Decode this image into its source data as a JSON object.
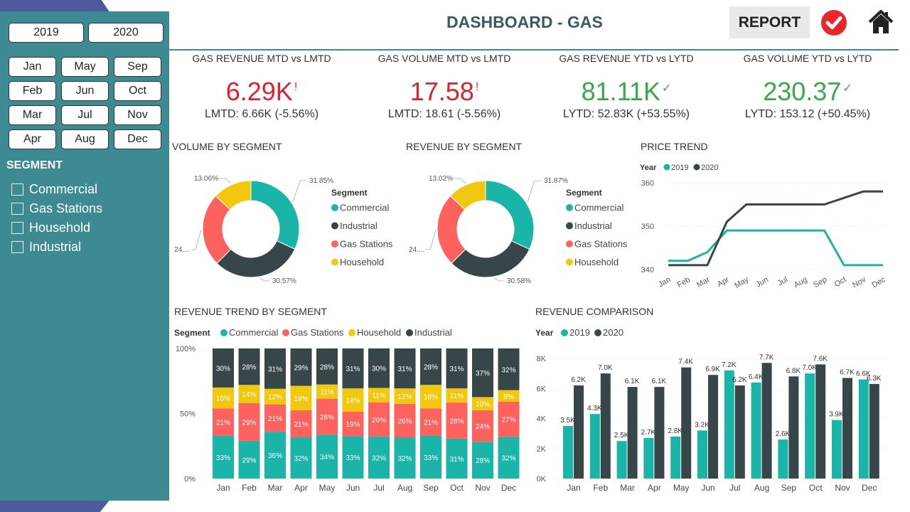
{
  "header": {
    "title": "DASHBOARD - GAS",
    "report_label": "REPORT"
  },
  "filters": {
    "years": [
      "2019",
      "2020"
    ],
    "months": [
      "Jan",
      "May",
      "Sep",
      "Feb",
      "Jun",
      "Oct",
      "Mar",
      "Jul",
      "Nov",
      "Apr",
      "Aug",
      "Dec"
    ],
    "segment_title": "SEGMENT",
    "segments": [
      "Commercial",
      "Gas Stations",
      "Household",
      "Industrial"
    ]
  },
  "kpis": [
    {
      "title": "GAS REVENUE MTD vs LMTD",
      "value": "6.29K",
      "mark": "!",
      "sub": "LMTD: 6.66K (-5.56%)",
      "status": "red"
    },
    {
      "title": "GAS VOLUME MTD vs LMTD",
      "value": "17.58",
      "mark": "!",
      "sub": "LMTD: 18.61 (-5.56%)",
      "status": "red"
    },
    {
      "title": "GAS REVENUE YTD vs LYTD",
      "value": "81.11K",
      "mark": "✓",
      "sub": "LYTD: 52.83K (+53.55%)",
      "status": "green"
    },
    {
      "title": "GAS VOLUME YTD vs LYTD",
      "value": "230.37",
      "mark": "✓",
      "sub": "LYTD: 153.12 (+50.45%)",
      "status": "green"
    }
  ],
  "colors": {
    "commercial": "#1ab5a8",
    "industrial": "#374649",
    "gas_stations": "#fd625e",
    "household": "#f2c80f",
    "y2019": "#1ab5a8",
    "y2020": "#374649",
    "header": "#3b5966",
    "sidebar": "#3d8a93"
  },
  "chart_data": [
    {
      "type": "pie",
      "title": "VOLUME BY SEGMENT",
      "legend_title": "Segment",
      "categories": [
        "Commercial",
        "Industrial",
        "Gas Stations",
        "Household"
      ],
      "values": [
        31.85,
        30.57,
        24.52,
        13.06
      ],
      "labels": [
        "31.85%",
        "30.57%",
        "24....",
        "13.06%"
      ]
    },
    {
      "type": "pie",
      "title": "REVENUE BY SEGMENT",
      "legend_title": "Segment",
      "categories": [
        "Commercial",
        "Industrial",
        "Gas Stations",
        "Household"
      ],
      "values": [
        31.87,
        30.58,
        24.53,
        13.02
      ],
      "labels": [
        "31.87%",
        "30.58%",
        "24....",
        "13.02%"
      ]
    },
    {
      "type": "line",
      "title": "PRICE TREND",
      "legend_title": "Year",
      "x": [
        "Jan",
        "Feb",
        "Mar",
        "Apr",
        "May",
        "Jun",
        "Jul",
        "Aug",
        "Sep",
        "Oct",
        "Nov",
        "Dec"
      ],
      "series": [
        {
          "name": "2019",
          "values": [
            342,
            342,
            344,
            349,
            349,
            349,
            349,
            349,
            349,
            341,
            341,
            341
          ]
        },
        {
          "name": "2020",
          "values": [
            341,
            341,
            341,
            351,
            355,
            355,
            355,
            355,
            355,
            356.5,
            358,
            358
          ]
        }
      ],
      "yticks": [
        "340",
        "350",
        "360"
      ],
      "ylim": [
        340,
        360
      ]
    },
    {
      "type": "bar",
      "stacked": "percent",
      "title": "REVENUE TREND BY SEGMENT",
      "legend_title": "Segment",
      "categories": [
        "Jan",
        "Feb",
        "Mar",
        "Apr",
        "May",
        "Jun",
        "Jul",
        "Aug",
        "Sep",
        "Oct",
        "Nov",
        "Dec"
      ],
      "series": [
        {
          "name": "Commercial",
          "values": [
            33,
            29,
            36,
            32,
            34,
            33,
            32,
            32,
            33,
            31,
            28,
            32
          ]
        },
        {
          "name": "Gas Stations",
          "values": [
            21,
            29,
            21,
            21,
            28,
            19,
            26,
            26,
            21,
            28,
            24,
            27
          ]
        },
        {
          "name": "Household",
          "values": [
            16,
            14,
            12,
            19,
            11,
            18,
            11,
            12,
            18,
            11,
            10,
            9
          ]
        },
        {
          "name": "Industrial",
          "values": [
            30,
            28,
            31,
            29,
            28,
            31,
            30,
            31,
            28,
            31,
            37,
            32
          ]
        }
      ],
      "yticks": [
        "0%",
        "50%",
        "100%"
      ]
    },
    {
      "type": "bar",
      "title": "REVENUE COMPARISON",
      "legend_title": "Year",
      "categories": [
        "Jan",
        "Feb",
        "Mar",
        "Apr",
        "May",
        "Jun",
        "Jul",
        "Aug",
        "Sep",
        "Oct",
        "Nov",
        "Dec"
      ],
      "series": [
        {
          "name": "2019",
          "values": [
            3.5,
            4.3,
            2.5,
            2.7,
            2.8,
            3.2,
            7.2,
            6.4,
            2.6,
            7.0,
            3.9,
            6.6
          ],
          "labels": [
            "3.5K",
            "4.3K",
            "2.5K",
            "2.7K",
            "2.8K",
            "3.2K",
            "7.2K",
            "6.4K",
            "2.6K",
            "7.0K",
            "3.9K",
            "6.6K"
          ]
        },
        {
          "name": "2020",
          "values": [
            6.2,
            7.0,
            6.1,
            6.1,
            7.4,
            6.9,
            6.2,
            7.7,
            6.8,
            7.6,
            6.7,
            6.3
          ],
          "labels": [
            "6.2K",
            "7.0K",
            "6.1K",
            "6.1K",
            "7.4K",
            "6.9K",
            "6.2K",
            "7.7K",
            "6.8K",
            "7.6K",
            "6.7K",
            "6.3K"
          ]
        }
      ],
      "yticks": [
        "0K",
        "2K",
        "4K",
        "6K",
        "8K"
      ],
      "ylim": [
        0,
        8
      ]
    }
  ]
}
